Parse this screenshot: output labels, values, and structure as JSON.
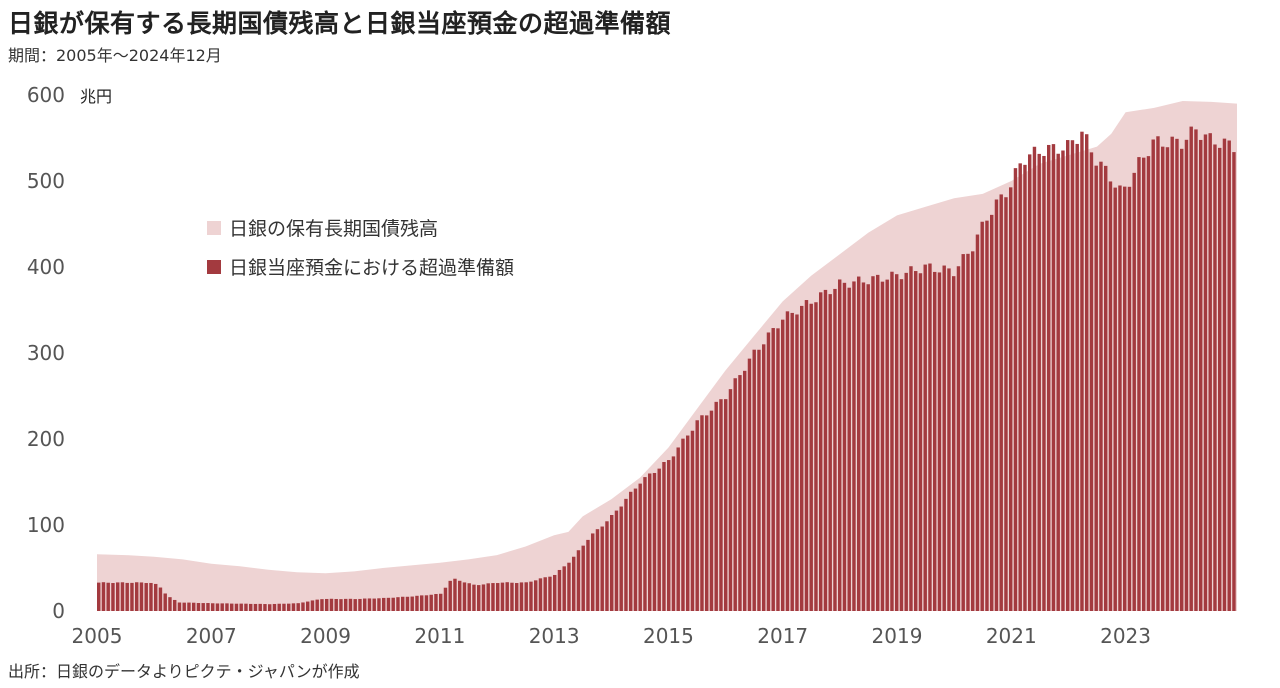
{
  "title": "日銀が保有する長期国債残高と日銀当座預金の超過準備額",
  "subtitle": "期間：2005年～2024年12月",
  "source": "出所：日銀のデータよりピクテ・ジャパンが作成",
  "colors": {
    "holdings": "#eed3d3",
    "excess": "#a33a3f"
  },
  "chart_data": {
    "type": "area",
    "unit": "兆円",
    "ylim": [
      0,
      600
    ],
    "y_ticks": [
      "0",
      "100",
      "200",
      "300",
      "400",
      "500",
      "600"
    ],
    "x_ticks": [
      "2005",
      "2007",
      "2009",
      "2011",
      "2013",
      "2015",
      "2017",
      "2019",
      "2021",
      "2023"
    ],
    "x_range": [
      2005,
      2024.95
    ],
    "grid": false,
    "legend_position": "upper-left",
    "series": [
      {
        "name": "日銀の保有長期国債残高",
        "kind": "area",
        "points": [
          [
            2005.0,
            66
          ],
          [
            2005.5,
            65
          ],
          [
            2006.0,
            63
          ],
          [
            2006.5,
            60
          ],
          [
            2007.0,
            55
          ],
          [
            2007.5,
            52
          ],
          [
            2008.0,
            48
          ],
          [
            2008.5,
            45
          ],
          [
            2009.0,
            44
          ],
          [
            2009.5,
            46
          ],
          [
            2010.0,
            50
          ],
          [
            2010.5,
            53
          ],
          [
            2011.0,
            56
          ],
          [
            2011.5,
            60
          ],
          [
            2012.0,
            65
          ],
          [
            2012.5,
            75
          ],
          [
            2013.0,
            88
          ],
          [
            2013.25,
            92
          ],
          [
            2013.5,
            110
          ],
          [
            2014.0,
            130
          ],
          [
            2014.5,
            155
          ],
          [
            2015.0,
            190
          ],
          [
            2015.5,
            235
          ],
          [
            2016.0,
            280
          ],
          [
            2016.5,
            320
          ],
          [
            2017.0,
            360
          ],
          [
            2017.5,
            390
          ],
          [
            2018.0,
            415
          ],
          [
            2018.5,
            440
          ],
          [
            2019.0,
            460
          ],
          [
            2019.5,
            470
          ],
          [
            2020.0,
            480
          ],
          [
            2020.5,
            485
          ],
          [
            2021.0,
            500
          ],
          [
            2021.5,
            520
          ],
          [
            2022.0,
            530
          ],
          [
            2022.5,
            540
          ],
          [
            2022.75,
            555
          ],
          [
            2023.0,
            580
          ],
          [
            2023.5,
            585
          ],
          [
            2024.0,
            593
          ],
          [
            2024.5,
            592
          ],
          [
            2024.95,
            590
          ]
        ]
      },
      {
        "name": "日銀当座預金における超過準備額",
        "kind": "bar",
        "frequency": "monthly",
        "points": [
          [
            2005.0,
            33
          ],
          [
            2005.9,
            33
          ],
          [
            2006.05,
            30
          ],
          [
            2006.2,
            18
          ],
          [
            2006.4,
            10
          ],
          [
            2007.0,
            9
          ],
          [
            2008.0,
            8
          ],
          [
            2008.5,
            9
          ],
          [
            2008.9,
            14
          ],
          [
            2009.5,
            14
          ],
          [
            2010.0,
            15
          ],
          [
            2010.5,
            17
          ],
          [
            2011.0,
            20
          ],
          [
            2011.2,
            38
          ],
          [
            2011.6,
            30
          ],
          [
            2012.0,
            33
          ],
          [
            2012.5,
            33
          ],
          [
            2013.0,
            42
          ],
          [
            2013.3,
            60
          ],
          [
            2013.6,
            85
          ],
          [
            2014.0,
            110
          ],
          [
            2014.5,
            150
          ],
          [
            2015.0,
            175
          ],
          [
            2015.5,
            220
          ],
          [
            2016.0,
            250
          ],
          [
            2016.5,
            300
          ],
          [
            2017.0,
            340
          ],
          [
            2017.5,
            360
          ],
          [
            2018.0,
            380
          ],
          [
            2018.5,
            385
          ],
          [
            2019.0,
            390
          ],
          [
            2019.5,
            400
          ],
          [
            2020.0,
            395
          ],
          [
            2020.3,
            420
          ],
          [
            2020.6,
            460
          ],
          [
            2021.0,
            495
          ],
          [
            2021.2,
            525
          ],
          [
            2021.5,
            535
          ],
          [
            2022.0,
            540
          ],
          [
            2022.25,
            557
          ],
          [
            2022.5,
            525
          ],
          [
            2022.75,
            505
          ],
          [
            2022.95,
            485
          ],
          [
            2023.25,
            520
          ],
          [
            2023.5,
            545
          ],
          [
            2024.0,
            545
          ],
          [
            2024.25,
            560
          ],
          [
            2024.5,
            548
          ],
          [
            2024.95,
            540
          ]
        ]
      }
    ]
  }
}
